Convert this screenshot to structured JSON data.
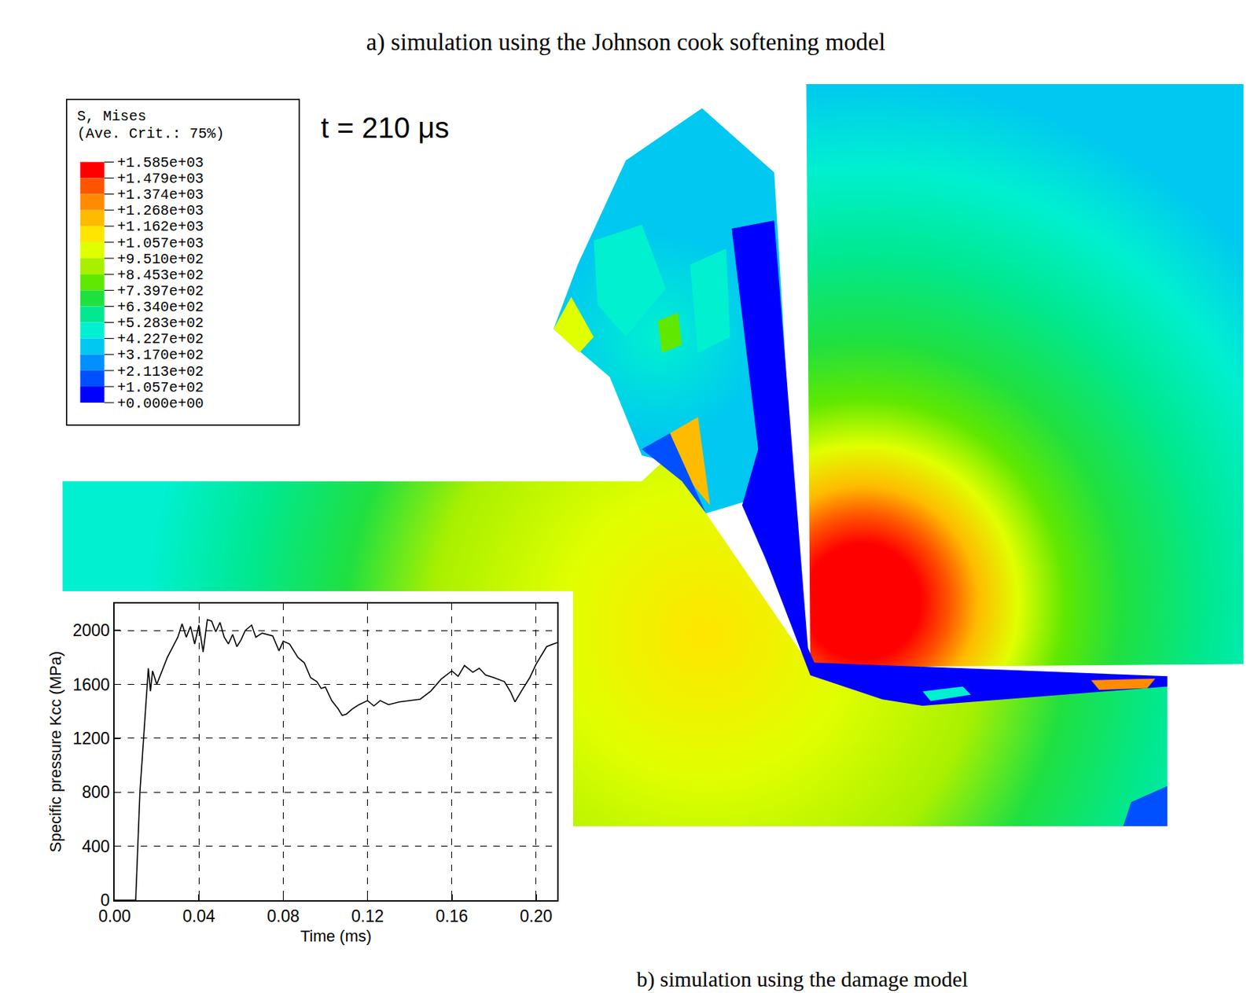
{
  "captions": {
    "top": "a) simulation using the Johnson cook softening model",
    "bottom": "b) simulation using the damage model"
  },
  "simulation": {
    "time_label": "t = 210 μs",
    "legend": {
      "title": "S, Mises",
      "subtitle": "(Ave. Crit.: 75%)",
      "levels": [
        {
          "value": 1585,
          "label": "+1.585e+03"
        },
        {
          "value": 1479,
          "label": "+1.479e+03"
        },
        {
          "value": 1374,
          "label": "+1.374e+03"
        },
        {
          "value": 1268,
          "label": "+1.268e+03"
        },
        {
          "value": 1162,
          "label": "+1.162e+03"
        },
        {
          "value": 1057,
          "label": "+1.057e+03"
        },
        {
          "value": 951,
          "label": "+9.510e+02"
        },
        {
          "value": 845.3,
          "label": "+8.453e+02"
        },
        {
          "value": 739.7,
          "label": "+7.397e+02"
        },
        {
          "value": 634,
          "label": "+6.340e+02"
        },
        {
          "value": 528.3,
          "label": "+5.283e+02"
        },
        {
          "value": 422.7,
          "label": "+4.227e+02"
        },
        {
          "value": 317,
          "label": "+3.170e+02"
        },
        {
          "value": 211.3,
          "label": "+2.113e+02"
        },
        {
          "value": 105.7,
          "label": "+1.057e+02"
        },
        {
          "value": 0,
          "label": "+0.000e+00"
        }
      ],
      "colors": [
        "#ff0000",
        "#ff5500",
        "#ff8c00",
        "#ffbb00",
        "#ffe500",
        "#e0ff00",
        "#a8f000",
        "#60e800",
        "#20e040",
        "#00e890",
        "#00f0d0",
        "#00c8f0",
        "#0090ff",
        "#0050ff",
        "#0000ff"
      ]
    }
  },
  "chart_data": {
    "type": "line",
    "x_label": "Time (ms)",
    "y_label": "Specific pressure Kcc (MPa)",
    "color": "#000000",
    "grid": true,
    "xlim": [
      0,
      0.21
    ],
    "ylim": [
      0,
      2200
    ],
    "xticks": [
      {
        "value": 0,
        "label": "0.00"
      },
      0.04,
      0.08,
      0.12,
      0.16,
      {
        "value": 0.2,
        "label": "0.20"
      }
    ],
    "yticks": [
      0,
      400,
      800,
      1200,
      1600,
      2000
    ],
    "x": [
      0.0,
      0.01,
      0.012,
      0.015,
      0.016,
      0.017,
      0.018,
      0.02,
      0.022,
      0.025,
      0.03,
      0.032,
      0.034,
      0.036,
      0.038,
      0.04,
      0.042,
      0.044,
      0.046,
      0.048,
      0.05,
      0.052,
      0.054,
      0.056,
      0.058,
      0.06,
      0.062,
      0.065,
      0.067,
      0.07,
      0.075,
      0.078,
      0.08,
      0.083,
      0.087,
      0.09,
      0.093,
      0.096,
      0.098,
      0.1,
      0.103,
      0.106,
      0.108,
      0.11,
      0.113,
      0.116,
      0.12,
      0.123,
      0.126,
      0.13,
      0.135,
      0.14,
      0.145,
      0.15,
      0.155,
      0.16,
      0.163,
      0.166,
      0.17,
      0.173,
      0.176,
      0.18,
      0.185,
      0.188,
      0.19,
      0.193,
      0.197,
      0.2,
      0.205,
      0.21
    ],
    "values": [
      0,
      0,
      800,
      1500,
      1720,
      1550,
      1700,
      1600,
      1680,
      1800,
      1950,
      2050,
      1950,
      2030,
      1900,
      2040,
      1840,
      2080,
      2070,
      1990,
      2060,
      1950,
      1900,
      1970,
      1880,
      1930,
      2000,
      2040,
      1950,
      1980,
      1960,
      1850,
      1920,
      1900,
      1800,
      1760,
      1650,
      1620,
      1570,
      1580,
      1480,
      1420,
      1370,
      1380,
      1420,
      1450,
      1480,
      1440,
      1480,
      1450,
      1470,
      1480,
      1490,
      1550,
      1640,
      1700,
      1660,
      1740,
      1690,
      1720,
      1670,
      1650,
      1620,
      1540,
      1470,
      1550,
      1650,
      1750,
      1880,
      1910
    ]
  }
}
